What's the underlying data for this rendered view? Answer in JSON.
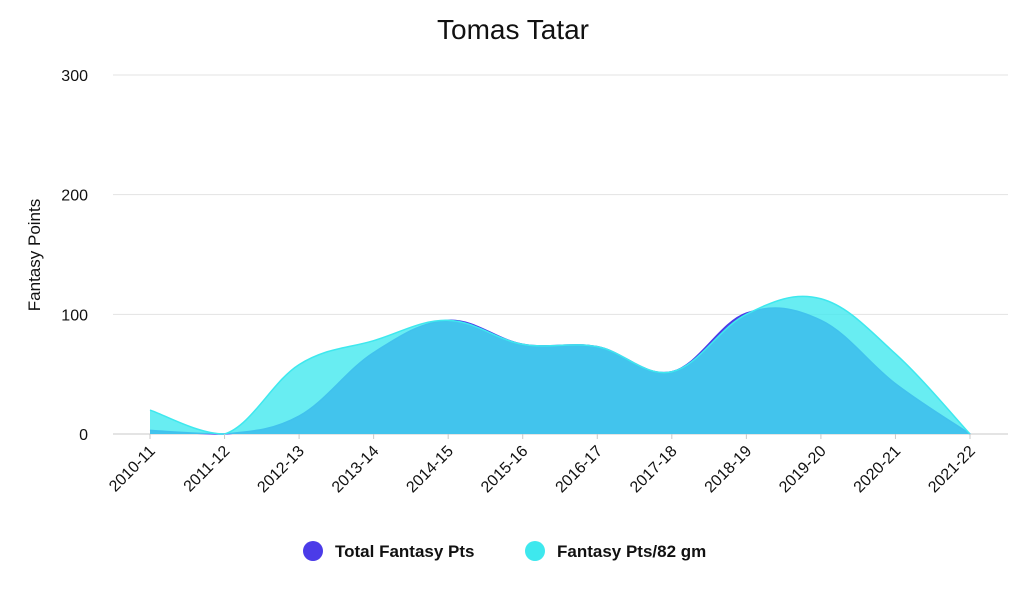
{
  "chart_data": {
    "type": "area",
    "title": "Tomas Tatar",
    "xlabel": "",
    "ylabel": "Fantasy Points",
    "categories": [
      "2010-11",
      "2011-12",
      "2012-13",
      "2013-14",
      "2014-15",
      "2015-16",
      "2016-17",
      "2017-18",
      "2018-19",
      "2019-20",
      "2020-21",
      "2021-22"
    ],
    "ylim": [
      0,
      300
    ],
    "yticks": [
      0,
      100,
      200,
      300
    ],
    "grid": true,
    "legend_position": "bottom",
    "series": [
      {
        "name": "Total Fantasy Pts",
        "color": "#4B3BE8",
        "values": [
          3,
          0,
          15,
          68,
          95,
          75,
          73,
          52,
          101,
          95,
          42,
          0
        ]
      },
      {
        "name": "Fantasy Pts/82 gm",
        "color": "#3EE8EE",
        "values": [
          20,
          0,
          58,
          78,
          95,
          75,
          73,
          52,
          100,
          113,
          67,
          0
        ]
      }
    ]
  }
}
